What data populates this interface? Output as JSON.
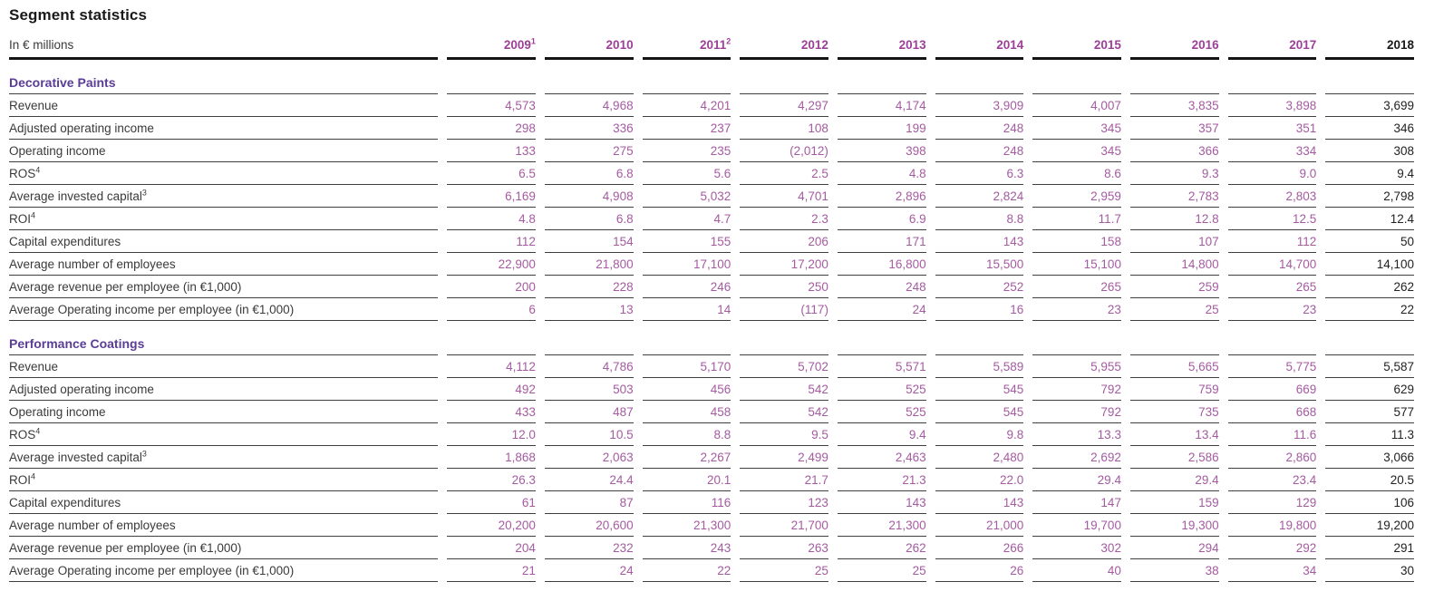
{
  "title": "Segment statistics",
  "unit_label": "In € millions",
  "colors": {
    "accent-purple": "#9c3f98",
    "value-purple": "#a55ba1",
    "section-purple": "#5a3d96",
    "text-dark": "#1a1a1a",
    "line": "#3f3f3f",
    "line-strong": "#141414"
  },
  "columns": [
    {
      "label": "2009",
      "sup": "1"
    },
    {
      "label": "2010"
    },
    {
      "label": "2011",
      "sup": "2"
    },
    {
      "label": "2012"
    },
    {
      "label": "2013"
    },
    {
      "label": "2014"
    },
    {
      "label": "2015"
    },
    {
      "label": "2016"
    },
    {
      "label": "2017"
    },
    {
      "label": "2018"
    }
  ],
  "sections": [
    {
      "name": "Decorative Paints",
      "rows": [
        {
          "label": "Revenue",
          "values": [
            "4,573",
            "4,968",
            "4,201",
            "4,297",
            "4,174",
            "3,909",
            "4,007",
            "3,835",
            "3,898",
            "3,699"
          ]
        },
        {
          "label": "Adjusted operating income",
          "values": [
            "298",
            "336",
            "237",
            "108",
            "199",
            "248",
            "345",
            "357",
            "351",
            "346"
          ]
        },
        {
          "label": "Operating income",
          "values": [
            "133",
            "275",
            "235",
            "(2,012)",
            "398",
            "248",
            "345",
            "366",
            "334",
            "308"
          ]
        },
        {
          "label": "ROS",
          "sup": "4",
          "values": [
            "6.5",
            "6.8",
            "5.6",
            "2.5",
            "4.8",
            "6.3",
            "8.6",
            "9.3",
            "9.0",
            "9.4"
          ]
        },
        {
          "label": "Average invested capital",
          "sup": "3",
          "values": [
            "6,169",
            "4,908",
            "5,032",
            "4,701",
            "2,896",
            "2,824",
            "2,959",
            "2,783",
            "2,803",
            "2,798"
          ]
        },
        {
          "label": "ROI",
          "sup": "4",
          "values": [
            "4.8",
            "6.8",
            "4.7",
            "2.3",
            "6.9",
            "8.8",
            "11.7",
            "12.8",
            "12.5",
            "12.4"
          ]
        },
        {
          "label": "Capital expenditures",
          "values": [
            "112",
            "154",
            "155",
            "206",
            "171",
            "143",
            "158",
            "107",
            "112",
            "50"
          ]
        },
        {
          "label": "Average number of employees",
          "values": [
            "22,900",
            "21,800",
            "17,100",
            "17,200",
            "16,800",
            "15,500",
            "15,100",
            "14,800",
            "14,700",
            "14,100"
          ]
        },
        {
          "label": "Average revenue per employee (in €1,000)",
          "values": [
            "200",
            "228",
            "246",
            "250",
            "248",
            "252",
            "265",
            "259",
            "265",
            "262"
          ]
        },
        {
          "label": "Average Operating income per employee (in €1,000)",
          "values": [
            "6",
            "13",
            "14",
            "(117)",
            "24",
            "16",
            "23",
            "25",
            "23",
            "22"
          ]
        }
      ]
    },
    {
      "name": "Performance Coatings",
      "rows": [
        {
          "label": "Revenue",
          "values": [
            "4,112",
            "4,786",
            "5,170",
            "5,702",
            "5,571",
            "5,589",
            "5,955",
            "5,665",
            "5,775",
            "5,587"
          ]
        },
        {
          "label": "Adjusted operating income",
          "values": [
            "492",
            "503",
            "456",
            "542",
            "525",
            "545",
            "792",
            "759",
            "669",
            "629"
          ]
        },
        {
          "label": "Operating income",
          "values": [
            "433",
            "487",
            "458",
            "542",
            "525",
            "545",
            "792",
            "735",
            "668",
            "577"
          ]
        },
        {
          "label": "ROS",
          "sup": "4",
          "values": [
            "12.0",
            "10.5",
            "8.8",
            "9.5",
            "9.4",
            "9.8",
            "13.3",
            "13.4",
            "11.6",
            "11.3"
          ]
        },
        {
          "label": "Average invested capital",
          "sup": "3",
          "values": [
            "1,868",
            "2,063",
            "2,267",
            "2,499",
            "2,463",
            "2,480",
            "2,692",
            "2,586",
            "2,860",
            "3,066"
          ]
        },
        {
          "label": "ROI",
          "sup": "4",
          "values": [
            "26.3",
            "24.4",
            "20.1",
            "21.7",
            "21.3",
            "22.0",
            "29.4",
            "29.4",
            "23.4",
            "20.5"
          ]
        },
        {
          "label": "Capital expenditures",
          "values": [
            "61",
            "87",
            "116",
            "123",
            "143",
            "143",
            "147",
            "159",
            "129",
            "106"
          ]
        },
        {
          "label": "Average number of employees",
          "values": [
            "20,200",
            "20,600",
            "21,300",
            "21,700",
            "21,300",
            "21,000",
            "19,700",
            "19,300",
            "19,800",
            "19,200"
          ]
        },
        {
          "label": "Average revenue per employee (in €1,000)",
          "values": [
            "204",
            "232",
            "243",
            "263",
            "262",
            "266",
            "302",
            "294",
            "292",
            "291"
          ]
        },
        {
          "label": "Average Operating income per employee (in €1,000)",
          "values": [
            "21",
            "24",
            "22",
            "25",
            "25",
            "26",
            "40",
            "38",
            "34",
            "30"
          ]
        }
      ]
    }
  ]
}
